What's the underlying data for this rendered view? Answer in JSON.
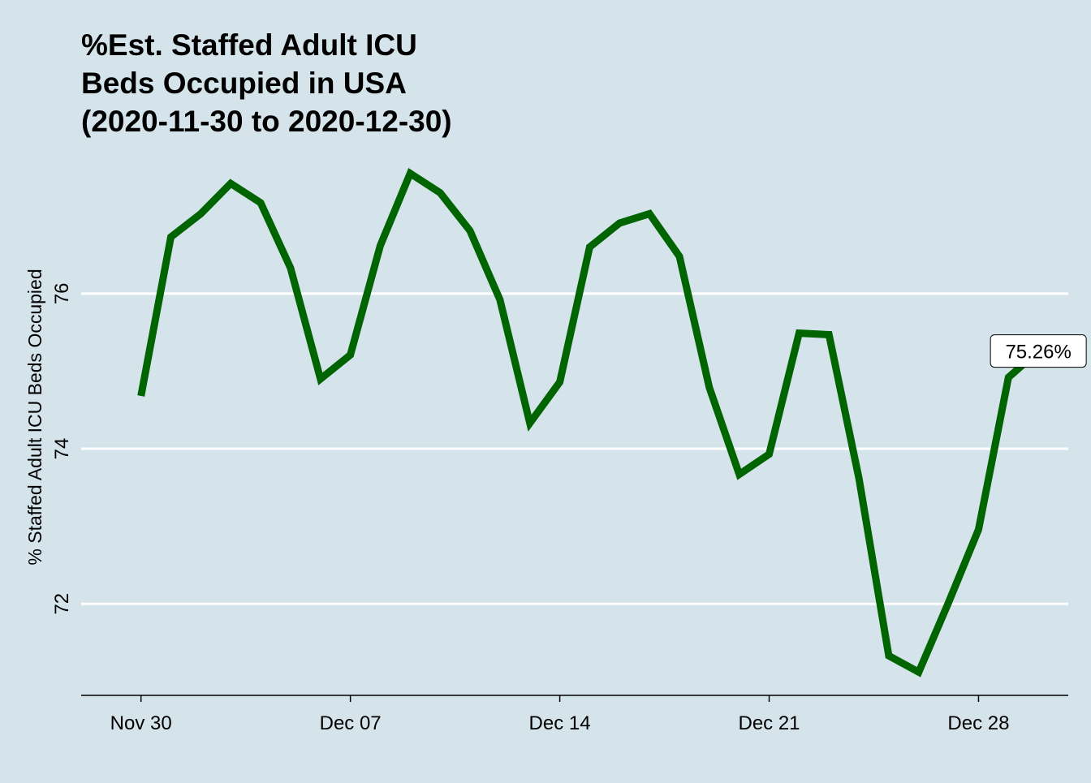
{
  "chart_data": {
    "type": "line",
    "title_lines": [
      "%Est. Staffed Adult ICU",
      "Beds Occupied in USA",
      "(2020-11-30 to 2020-12-30)"
    ],
    "xlabel": "",
    "ylabel": "% Staffed Adult ICU Beds Occupied",
    "x": [
      "2020-11-30",
      "2020-12-01",
      "2020-12-02",
      "2020-12-03",
      "2020-12-04",
      "2020-12-05",
      "2020-12-06",
      "2020-12-07",
      "2020-12-08",
      "2020-12-09",
      "2020-12-10",
      "2020-12-11",
      "2020-12-12",
      "2020-12-13",
      "2020-12-14",
      "2020-12-15",
      "2020-12-16",
      "2020-12-17",
      "2020-12-18",
      "2020-12-19",
      "2020-12-20",
      "2020-12-21",
      "2020-12-22",
      "2020-12-23",
      "2020-12-24",
      "2020-12-25",
      "2020-12-26",
      "2020-12-27",
      "2020-12-28",
      "2020-12-29",
      "2020-12-30"
    ],
    "series": [
      {
        "values": [
          74.68,
          76.73,
          77.03,
          77.42,
          77.17,
          76.33,
          74.9,
          75.21,
          76.62,
          77.55,
          77.3,
          76.81,
          75.92,
          74.33,
          74.86,
          76.6,
          76.91,
          77.03,
          76.48,
          74.79,
          73.67,
          73.93,
          75.49,
          75.47,
          73.62,
          71.33,
          71.12,
          72.02,
          72.96,
          74.92,
          75.26
        ],
        "color": "#006400"
      }
    ],
    "xticks": [
      "Nov 30",
      "Dec 07",
      "Dec 14",
      "Dec 21",
      "Dec 28"
    ],
    "xtick_dates": [
      "2020-11-30",
      "2020-12-07",
      "2020-12-14",
      "2020-12-21",
      "2020-12-28"
    ],
    "yticks": [
      72,
      74,
      76
    ],
    "ylim": [
      70.82,
      77.85
    ],
    "xlim": [
      "2020-11-28",
      "2020-12-31"
    ],
    "grid": "horizontal major lines, white",
    "legend": "none",
    "end_label": "75.26%",
    "background_color": "#d5e4eb",
    "line_color": "#006400",
    "grid_color": "#ffffff"
  }
}
